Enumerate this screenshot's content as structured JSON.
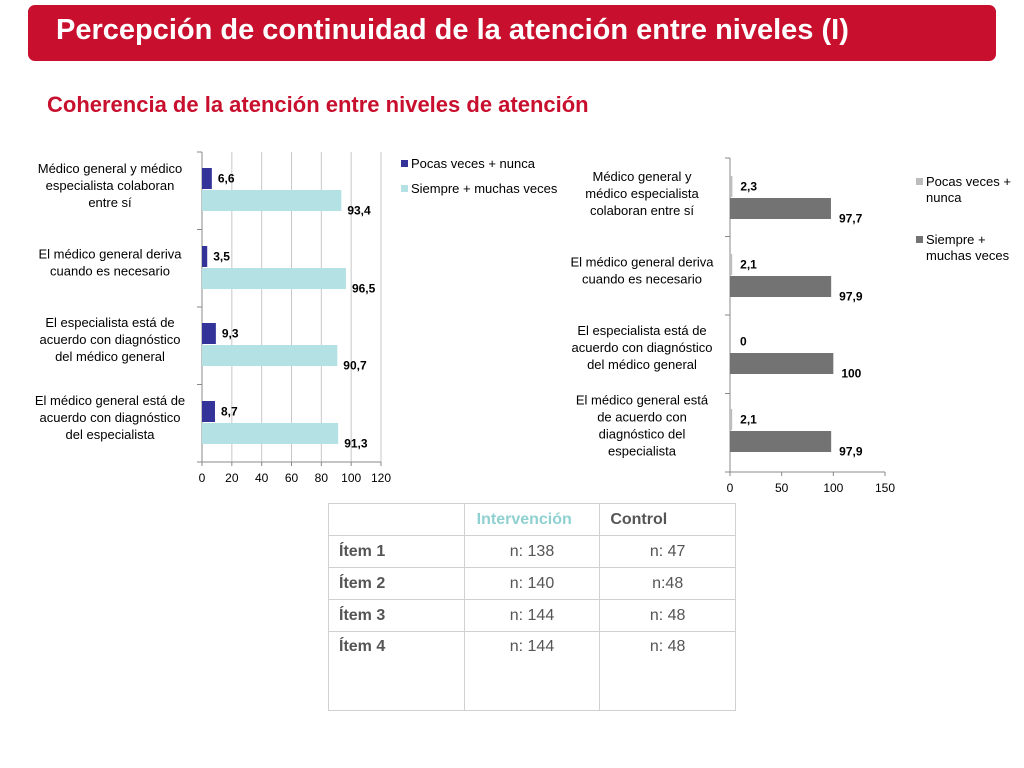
{
  "header": {
    "title": "Percepción de continuidad de la atención entre niveles  (I)",
    "subtitle": "Coherencia de la atención entre niveles de atención"
  },
  "colors": {
    "brand_red": "#c8102e",
    "left_pocas": "#333399",
    "left_siempre": "#b4e2e4",
    "right_pocas": "#bdbdbd",
    "right_siempre": "#737373",
    "gridline": "#c8c8c8"
  },
  "chart_data": [
    {
      "type": "bar",
      "orientation": "horizontal",
      "categories": [
        "Médico general y médico especialista colaboran entre sí",
        "El médico general deriva cuando es necesario",
        "El especialista está de acuerdo con diagnóstico del médico general",
        "El médico general está de acuerdo con diagnóstico del especialista"
      ],
      "category_lines": [
        [
          "Médico general y médico",
          "especialista colaboran",
          "entre sí"
        ],
        [
          "El médico general deriva",
          "cuando es necesario"
        ],
        [
          "El especialista está de",
          "acuerdo con diagnóstico",
          "del médico general"
        ],
        [
          "El médico general está de",
          "acuerdo con diagnóstico",
          "del especialista"
        ]
      ],
      "series": [
        {
          "name": "Pocas veces + nunca",
          "values": [
            6.6,
            3.5,
            9.3,
            8.7
          ],
          "labels": [
            "6,6",
            "3,5",
            "9,3",
            "8,7"
          ]
        },
        {
          "name": "Siempre + muchas veces",
          "values": [
            93.4,
            96.5,
            90.7,
            91.3
          ],
          "labels": [
            "93,4",
            "96,5",
            "90,7",
            "91,3"
          ]
        }
      ],
      "xlim": [
        0,
        120
      ],
      "xticks": [
        "0",
        "20",
        "40",
        "60",
        "80",
        "100",
        "120"
      ],
      "grid": true,
      "legend": "top-right",
      "legend_lines": [
        [
          "Pocas veces + nunca"
        ],
        [
          "Siempre + muchas veces"
        ]
      ]
    },
    {
      "type": "bar",
      "orientation": "horizontal",
      "categories": [
        "Médico general y médico especialista colaboran entre sí",
        "El médico general deriva cuando es necesario",
        "El especialista está de acuerdo con diagnóstico del médico general",
        "El médico general está de acuerdo con diagnóstico del especialista"
      ],
      "category_lines": [
        [
          "Médico general y",
          "médico especialista",
          "colaboran entre sí"
        ],
        [
          "El médico general deriva",
          "cuando es necesario"
        ],
        [
          "El especialista está de",
          "acuerdo con diagnóstico",
          "del médico general"
        ],
        [
          "El médico general está",
          "de acuerdo con",
          "diagnóstico del",
          "especialista"
        ]
      ],
      "series": [
        {
          "name": "Pocas veces + nunca",
          "values": [
            2.3,
            2.1,
            0,
            2.1
          ],
          "labels": [
            "2,3",
            "2,1",
            "0",
            "2,1"
          ]
        },
        {
          "name": "Siempre + muchas veces",
          "values": [
            97.7,
            97.9,
            100,
            97.9
          ],
          "labels": [
            "97,7",
            "97,9",
            "100",
            "97,9"
          ]
        }
      ],
      "xlim": [
        0,
        150
      ],
      "xticks": [
        "0",
        "50",
        "100",
        "150"
      ],
      "grid": false,
      "legend": "right",
      "legend_lines": [
        [
          "Pocas veces +",
          "nunca"
        ],
        [
          "Siempre +",
          "muchas veces"
        ]
      ]
    }
  ],
  "table": {
    "headers": [
      "",
      "Intervención",
      "Control"
    ],
    "rows": [
      [
        "Ítem 1",
        "n: 138",
        "n: 47"
      ],
      [
        "Ítem 2",
        "n: 140",
        "n:48"
      ],
      [
        "Ítem 3",
        "n:  144",
        "n: 48"
      ],
      [
        "Ítem 4",
        "n: 144",
        "n: 48"
      ]
    ]
  }
}
